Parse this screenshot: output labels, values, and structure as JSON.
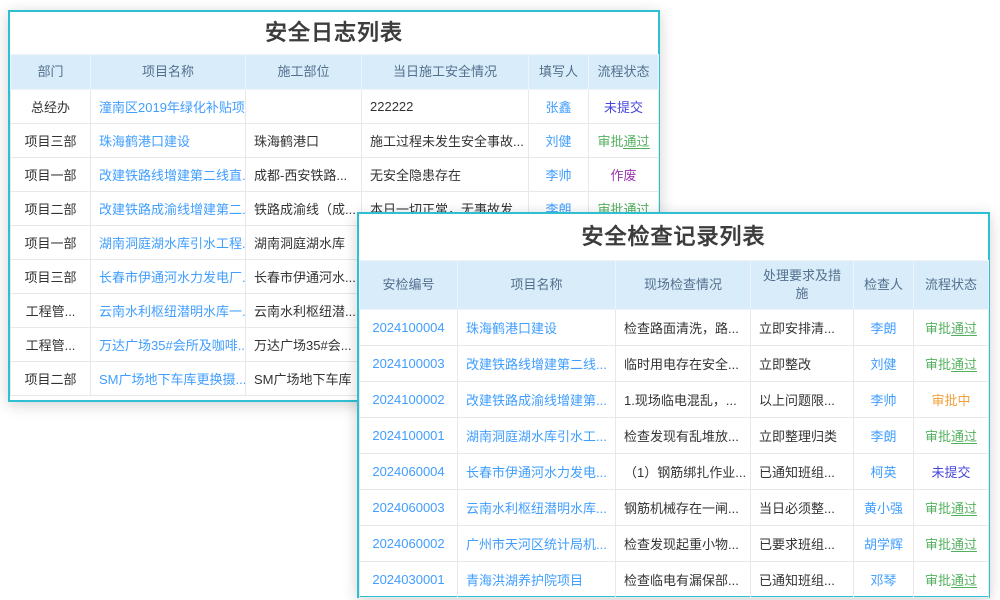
{
  "colors": {
    "card_border": "#2ec0d2",
    "header_bg": "#d9ecf9",
    "header_text": "#52708e",
    "link": "#409eff",
    "body_text": "#333333",
    "status_approved": "#53b05f",
    "status_pending": "#f0a13a",
    "status_unsubmitted": "#4646dd",
    "status_voided": "#9a35ad"
  },
  "log_table": {
    "title": "安全日志列表",
    "headers": [
      "部门",
      "项目名称",
      "施工部位",
      "当日施工安全情况",
      "填写人",
      "流程状态"
    ],
    "rows": [
      {
        "dept": "总经办",
        "project": "潼南区2019年绿化补贴项...",
        "site": "",
        "situation": "222222",
        "writer": "张鑫",
        "status": "未提交",
        "status_type": "unsubmitted"
      },
      {
        "dept": "项目三部",
        "project": "珠海鹤港口建设",
        "site": "珠海鹤港口",
        "situation": "施工过程未发生安全事故...",
        "writer": "刘健",
        "status": "审批通过",
        "status_type": "approved"
      },
      {
        "dept": "项目一部",
        "project": "改建铁路线增建第二线直...",
        "site": "成都-西安铁路...",
        "situation": "无安全隐患存在",
        "writer": "李帅",
        "status": "作废",
        "status_type": "voided"
      },
      {
        "dept": "项目二部",
        "project": "改建铁路成渝线增建第二...",
        "site": "铁路成渝线（成...",
        "situation": "本日一切正常，无事故发...",
        "writer": "李朗",
        "status": "审批通过",
        "status_type": "approved"
      },
      {
        "dept": "项目一部",
        "project": "湖南洞庭湖水库引水工程...",
        "site": "湖南洞庭湖水库",
        "situation": "",
        "writer": "",
        "status": "",
        "status_type": ""
      },
      {
        "dept": "项目三部",
        "project": "长春市伊通河水力发电厂...",
        "site": "长春市伊通河水...",
        "situation": "",
        "writer": "",
        "status": "",
        "status_type": ""
      },
      {
        "dept": "工程管...",
        "project": "云南水利枢纽潜明水库一...",
        "site": "云南水利枢纽潜...",
        "situation": "",
        "writer": "",
        "status": "",
        "status_type": ""
      },
      {
        "dept": "工程管...",
        "project": "万达广场35#会所及咖啡...",
        "site": "万达广场35#会...",
        "situation": "",
        "writer": "",
        "status": "",
        "status_type": ""
      },
      {
        "dept": "项目二部",
        "project": "SM广场地下车库更换摄...",
        "site": "SM广场地下车库",
        "situation": "",
        "writer": "",
        "status": "",
        "status_type": ""
      }
    ]
  },
  "inspect_table": {
    "title": "安全检查记录列表",
    "headers": [
      "安检编号",
      "项目名称",
      "现场检查情况",
      "处理要求及措施",
      "检查人",
      "流程状态"
    ],
    "rows": [
      {
        "no": "2024100004",
        "project": "珠海鹤港口建设",
        "check": "检查路面清洗，路...",
        "measure": "立即安排清...",
        "inspector": "李朗",
        "status": "审批通过",
        "status_type": "approved"
      },
      {
        "no": "2024100003",
        "project": "改建铁路线增建第二线...",
        "check": "临时用电存在安全...",
        "measure": "立即整改",
        "inspector": "刘健",
        "status": "审批通过",
        "status_type": "approved"
      },
      {
        "no": "2024100002",
        "project": "改建铁路成渝线增建第...",
        "check": "1.现场临电混乱，...",
        "measure": "以上问题限...",
        "inspector": "李帅",
        "status": "审批中",
        "status_type": "pending"
      },
      {
        "no": "2024100001",
        "project": "湖南洞庭湖水库引水工...",
        "check": "检查发现有乱堆放...",
        "measure": "立即整理归类",
        "inspector": "李朗",
        "status": "审批通过",
        "status_type": "approved"
      },
      {
        "no": "2024060004",
        "project": "长春市伊通河水力发电...",
        "check": "（1）钢筋绑扎作业...",
        "measure": "已通知班组...",
        "inspector": "柯英",
        "status": "未提交",
        "status_type": "unsubmitted"
      },
      {
        "no": "2024060003",
        "project": "云南水利枢纽潜明水库...",
        "check": "钢筋机械存在一闸...",
        "measure": "当日必须整...",
        "inspector": "黄小强",
        "status": "审批通过",
        "status_type": "approved"
      },
      {
        "no": "2024060002",
        "project": "广州市天河区统计局机...",
        "check": "检查发现起重小物...",
        "measure": "已要求班组...",
        "inspector": "胡学辉",
        "status": "审批通过",
        "status_type": "approved"
      },
      {
        "no": "2024030001",
        "project": "青海洪湖养护院项目",
        "check": "检查临电有漏保部...",
        "measure": "已通知班组...",
        "inspector": "邓琴",
        "status": "审批通过",
        "status_type": "approved"
      }
    ]
  }
}
